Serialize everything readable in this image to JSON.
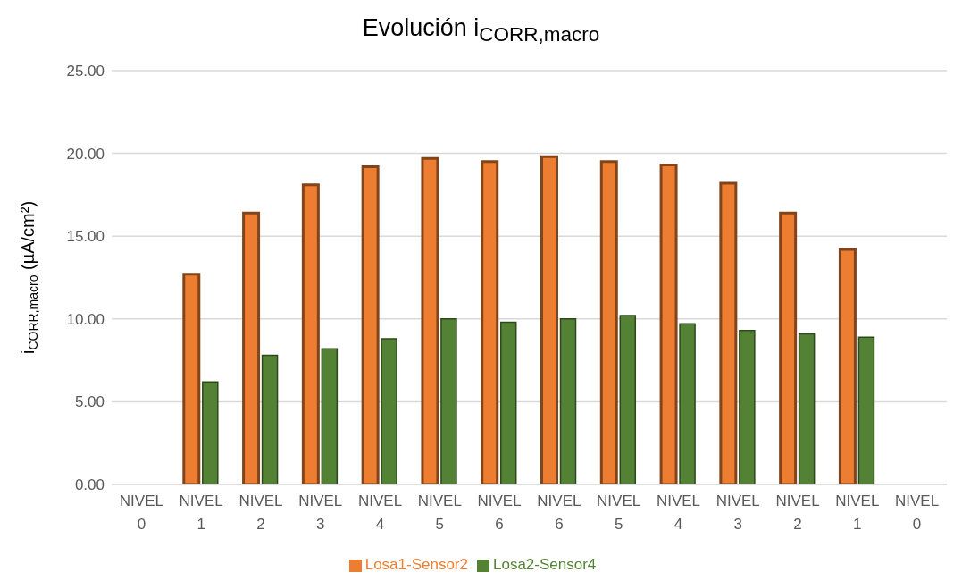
{
  "chart_data": {
    "type": "bar",
    "title": "Evolución i$_{CORR,macro}$",
    "ylabel": "i$_{CORR,macro}$ (µA/cm²)",
    "categories": [
      "NIVEL 0",
      "NIVEL 1",
      "NIVEL 2",
      "NIVEL 3",
      "NIVEL 4",
      "NIVEL 5",
      "NIVEL 6",
      "NIVEL 6",
      "NIVEL 5",
      "NIVEL 4",
      "NIVEL 3",
      "NIVEL 2",
      "NIVEL 1",
      "NIVEL 0"
    ],
    "series": [
      {
        "name": "Losa1-Sensor2",
        "color": "#ed7d31",
        "values": [
          null,
          12.7,
          16.4,
          18.1,
          19.2,
          19.7,
          19.5,
          19.8,
          19.5,
          19.3,
          18.2,
          16.4,
          14.2,
          null
        ]
      },
      {
        "name": "Losa2-Sensor4",
        "color": "#548235",
        "values": [
          null,
          6.2,
          7.8,
          8.2,
          8.8,
          10.0,
          9.8,
          10.0,
          10.2,
          9.7,
          9.3,
          9.1,
          8.9,
          null
        ]
      }
    ],
    "ylim": [
      0,
      25
    ],
    "yticks": [
      {
        "value": 0,
        "label": "0.00"
      },
      {
        "value": 5,
        "label": "5.00"
      },
      {
        "value": 10,
        "label": "10.00"
      },
      {
        "value": 15,
        "label": "15.00"
      },
      {
        "value": 20,
        "label": "20.00"
      },
      {
        "value": 25,
        "label": "25.00"
      }
    ],
    "grid": "y",
    "legend": "bottom"
  }
}
